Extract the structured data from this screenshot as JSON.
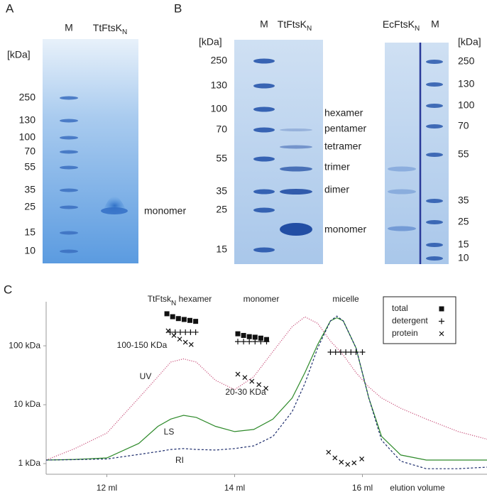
{
  "panel_a": {
    "label": "A",
    "unit": "[kDa]",
    "lanes": [
      {
        "text": "M"
      },
      {
        "text": "TtFtsK",
        "sub": "N"
      }
    ],
    "markers": [
      "250",
      "130",
      "100",
      "70",
      "55",
      "35",
      "25",
      "15",
      "10"
    ],
    "band_label": "monomer"
  },
  "panel_b": {
    "label": "B",
    "left_gel": {
      "unit": "[kDa]",
      "lanes": [
        {
          "text": "M"
        },
        {
          "text": "TtFtsK",
          "sub": "N"
        }
      ],
      "markers": [
        "250",
        "130",
        "100",
        "70",
        "55",
        "35",
        "25",
        "15"
      ],
      "oligomers": [
        "hexamer",
        "pentamer",
        "tetramer",
        "trimer",
        "dimer",
        "monomer"
      ]
    },
    "right_gel": {
      "unit": "[kDa]",
      "lanes": [
        {
          "text": "EcFtsK",
          "sub": "N"
        },
        {
          "text": "M"
        }
      ],
      "markers": [
        "250",
        "130",
        "100",
        "70",
        "55",
        "35",
        "25",
        "15",
        "10"
      ]
    }
  },
  "chart_data": {
    "type": "line",
    "panel_label": "C",
    "log_y": true,
    "grid": false,
    "x_label": "elution volume",
    "xlim": [
      11.05,
      17.95
    ],
    "xticks": [
      {
        "value": 12,
        "label": "12 ml"
      },
      {
        "value": 14,
        "label": "14 ml"
      },
      {
        "value": 16,
        "label": "16 ml"
      }
    ],
    "ylim": [
      0.66,
      560
    ],
    "yticks": [
      {
        "value": 1,
        "label": "1 kDa"
      },
      {
        "value": 10,
        "label": "10 kDa"
      },
      {
        "value": 100,
        "label": "100 kDa"
      }
    ],
    "x": [
      11.05,
      11.5,
      12.0,
      12.5,
      12.8,
      13.0,
      13.2,
      13.4,
      13.7,
      14.0,
      14.3,
      14.6,
      14.9,
      15.1,
      15.3,
      15.5,
      15.6,
      15.7,
      15.9,
      16.1,
      16.3,
      16.6,
      17.0,
      17.5,
      17.95
    ],
    "series": [
      {
        "name": "UV",
        "color": "#c8507a",
        "dash": "dotted",
        "values": [
          1.15,
          1.8,
          3.3,
          13,
          30,
          53,
          60,
          53,
          26,
          18,
          30,
          80,
          211,
          310,
          240,
          120,
          92,
          70,
          35,
          20,
          13,
          8.7,
          5.7,
          3.5,
          2.6
        ]
      },
      {
        "name": "LS",
        "color": "#2e8a2a",
        "dash": "solid",
        "values": [
          1.15,
          1.18,
          1.25,
          2.2,
          4.3,
          5.7,
          6.6,
          6.1,
          4.3,
          3.5,
          3.8,
          5.7,
          13,
          35,
          105,
          265,
          300,
          265,
          92,
          13,
          2.9,
          1.4,
          1.15,
          1.15,
          1.15
        ]
      },
      {
        "name": "RI",
        "color": "#1c2c6c",
        "dash": "dashed",
        "values": [
          1.15,
          1.17,
          1.2,
          1.43,
          1.6,
          1.74,
          1.8,
          1.74,
          1.7,
          1.8,
          2.0,
          2.9,
          7.6,
          23,
          92,
          265,
          320,
          265,
          92,
          13,
          2.5,
          1.1,
          0.82,
          0.82,
          0.87
        ]
      }
    ],
    "markers": [
      {
        "name": "total",
        "marker": "square",
        "color": "#111111",
        "x": [
          12.94,
          13.03,
          13.12,
          13.21,
          13.3,
          13.39,
          14.05,
          14.14,
          14.23,
          14.32,
          14.41,
          14.5
        ],
        "values": [
          350,
          312,
          290,
          280,
          270,
          260,
          160,
          150,
          143,
          140,
          135,
          128
        ]
      },
      {
        "name": "detergent",
        "marker": "plus",
        "color": "#111111",
        "x": [
          12.99,
          13.07,
          13.15,
          13.23,
          13.31,
          13.39,
          14.05,
          14.14,
          14.23,
          14.32,
          14.41,
          14.5,
          15.5,
          15.58,
          15.66,
          15.74,
          15.82,
          15.9,
          16.0
        ],
        "values": [
          170,
          170,
          170,
          170,
          170,
          170,
          118,
          118,
          118,
          118,
          118,
          118,
          78,
          78,
          78,
          78,
          78,
          78,
          78
        ]
      },
      {
        "name": "protein",
        "marker": "cross",
        "color": "#111111",
        "x": [
          12.96,
          13.05,
          13.14,
          13.23,
          13.32,
          14.05,
          14.16,
          14.27,
          14.38,
          14.49,
          15.47,
          15.57,
          15.67,
          15.77,
          15.87,
          15.99
        ],
        "values": [
          180,
          150,
          130,
          115,
          105,
          33,
          29,
          25,
          22,
          19,
          1.56,
          1.25,
          1.06,
          0.97,
          1.03,
          1.2
        ]
      }
    ],
    "annotations": {
      "hexamer": {
        "text": "TtFtsk",
        "sub": "N",
        "after": " hexamer"
      },
      "monomer": "monomer",
      "micelle": "micelle",
      "hexamer_mass": "100-150 KDa",
      "monomer_mass": "20-30 KDa"
    }
  }
}
